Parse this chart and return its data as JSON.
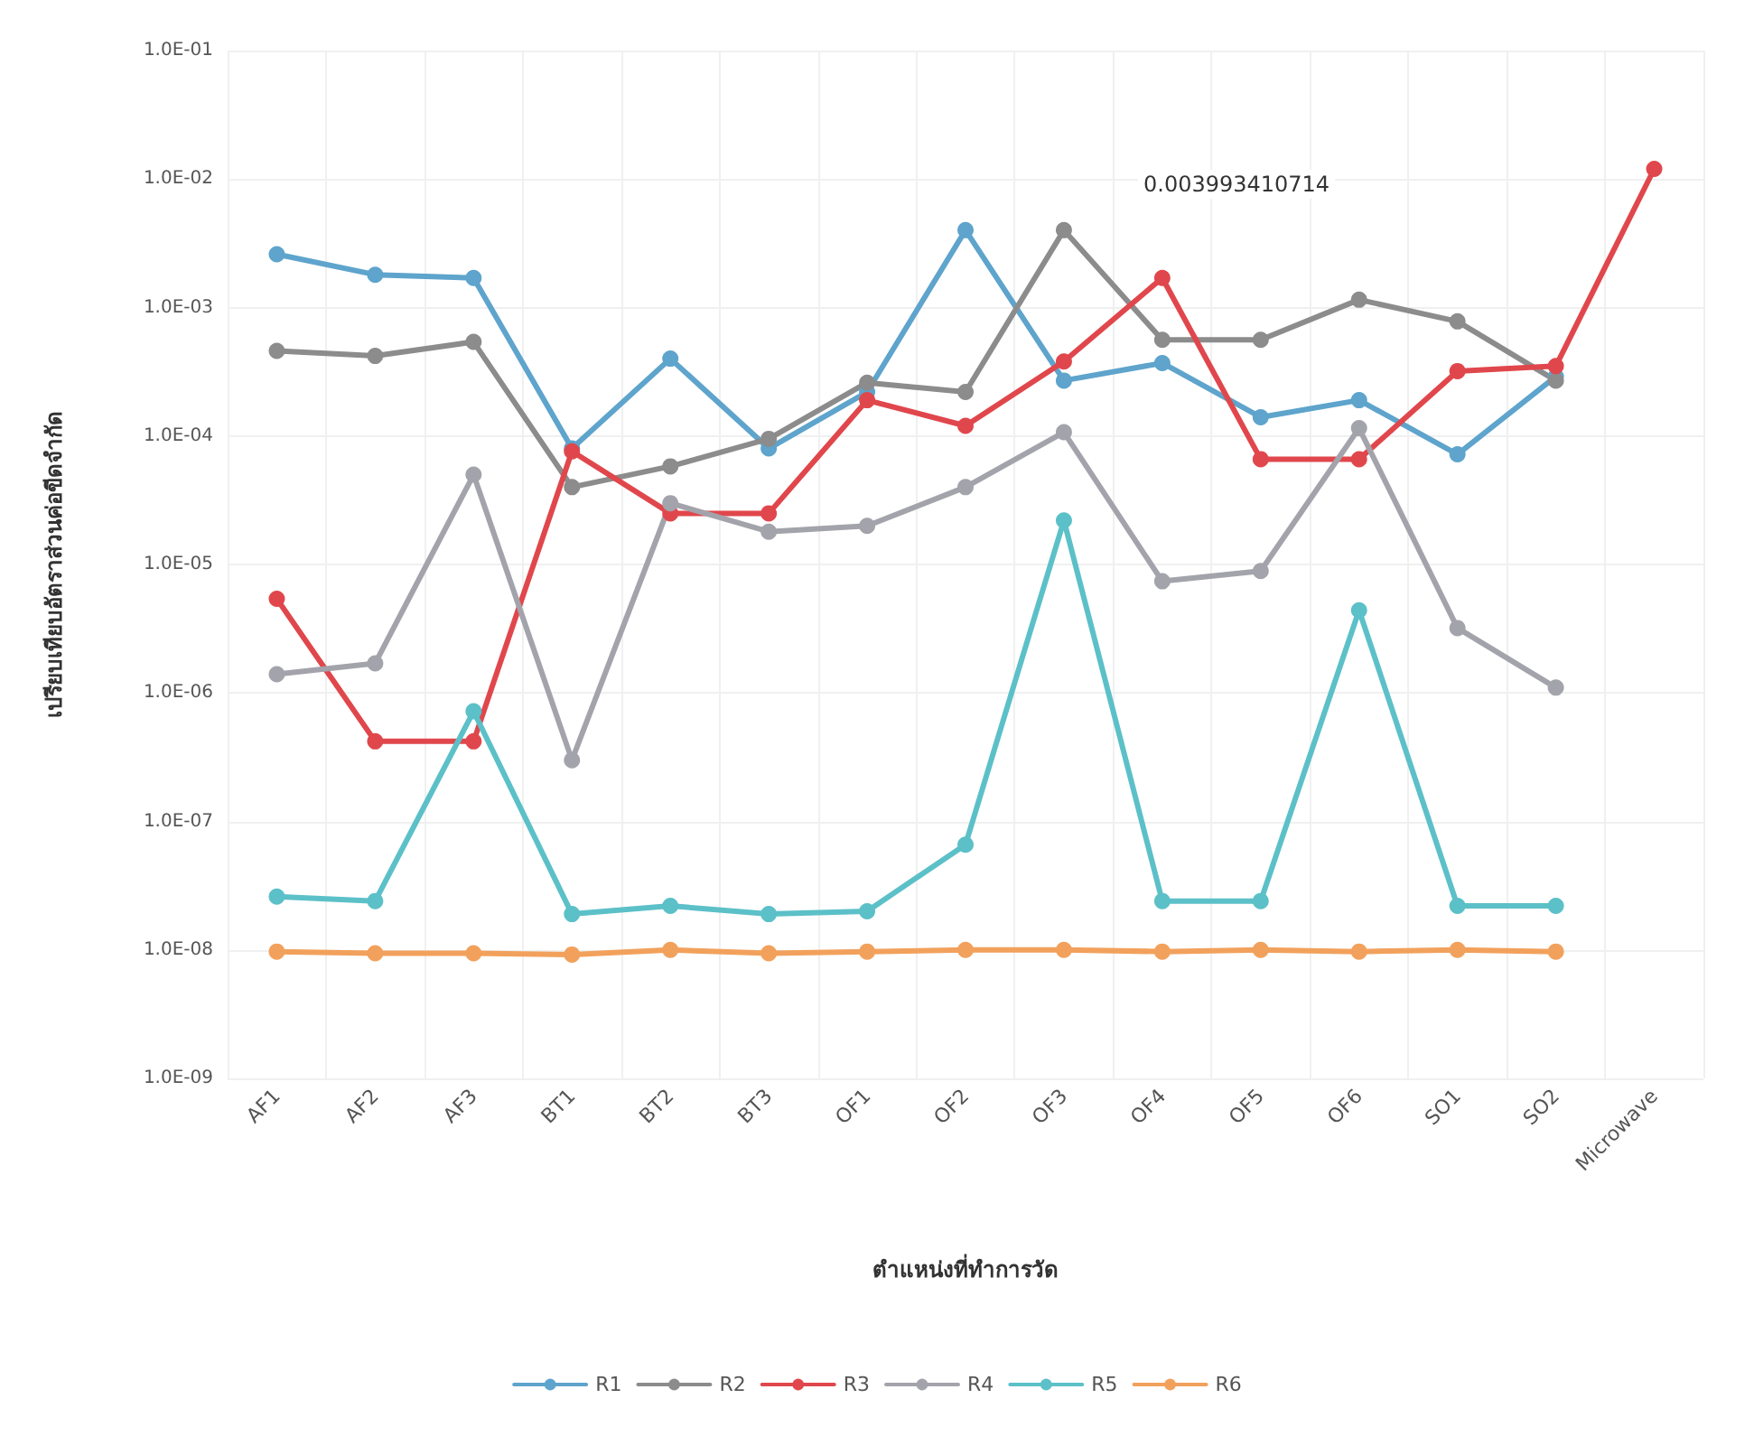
{
  "chart_data": {
    "type": "line",
    "xlabel": "ตำแหน่งที่ทำการวัด",
    "ylabel": "เปรียบเทียบอัตราส่วนค่อขีดจำกัด",
    "categories": [
      "AF1",
      "AF2",
      "AF3",
      "BT1",
      "BT2",
      "BT3",
      "OF1",
      "OF2",
      "OF3",
      "OF4",
      "OF5",
      "OF6",
      "SO1",
      "SO2",
      "Microwave"
    ],
    "series": [
      {
        "name": "R1",
        "color": "#5ea4cc",
        "values": [
          0.0026,
          0.0018,
          0.0017,
          8e-05,
          0.0004,
          8e-05,
          0.00022,
          0.004,
          0.00027,
          0.00037,
          0.00014,
          0.00019,
          7.2e-05,
          0.00029,
          null
        ]
      },
      {
        "name": "R2",
        "color": "#8c8c8c",
        "values": [
          0.00046,
          0.00042,
          0.00054,
          4e-05,
          5.8e-05,
          9.5e-05,
          0.00026,
          0.00022,
          0.004,
          0.00056,
          0.00056,
          0.00115,
          0.00078,
          0.00027,
          null
        ]
      },
      {
        "name": "R3",
        "color": "#e0474c",
        "values": [
          5.4e-06,
          4.2e-07,
          4.2e-07,
          7.6e-05,
          2.5e-05,
          2.5e-05,
          0.00019,
          0.00012,
          0.00038,
          0.0017,
          6.6e-05,
          6.6e-05,
          0.00032,
          0.00035,
          0.012
        ]
      },
      {
        "name": "R4",
        "color": "#a3a3ab",
        "values": [
          1.4e-06,
          1.7e-06,
          5e-05,
          3e-07,
          3e-05,
          1.8e-05,
          2e-05,
          4e-05,
          0.000107,
          7.4e-06,
          8.9e-06,
          0.000115,
          3.2e-06,
          1.1e-06,
          null
        ]
      },
      {
        "name": "R5",
        "color": "#5cc0c8",
        "values": [
          2.6e-08,
          2.4e-08,
          7.2e-07,
          1.9e-08,
          2.2e-08,
          1.9e-08,
          2e-08,
          6.6e-08,
          2.2e-05,
          2.4e-08,
          2.4e-08,
          4.4e-06,
          2.2e-08,
          2.2e-08,
          null
        ]
      },
      {
        "name": "R6",
        "color": "#f2a15c",
        "values": [
          9.7e-09,
          9.4e-09,
          9.4e-09,
          9.2e-09,
          1e-08,
          9.4e-09,
          9.7e-09,
          1e-08,
          1e-08,
          9.7e-09,
          1e-08,
          9.7e-09,
          1e-08,
          9.7e-09,
          null
        ]
      }
    ],
    "log": true,
    "ylim": [
      1e-09,
      0.1
    ],
    "yticks": [
      {
        "value": 1e-09,
        "label": "1.0E-09"
      },
      {
        "value": 1e-08,
        "label": "1.0E-08"
      },
      {
        "value": 1e-07,
        "label": "1.0E-07"
      },
      {
        "value": 1e-06,
        "label": "1.0E-06"
      },
      {
        "value": 1e-05,
        "label": "1.0E-05"
      },
      {
        "value": 0.0001,
        "label": "1.0E-04"
      },
      {
        "value": 0.001,
        "label": "1.0E-03"
      },
      {
        "value": 0.01,
        "label": "1.0E-02"
      },
      {
        "value": 0.1,
        "label": "1.0E-01"
      }
    ],
    "annotations": [
      "0.003993410714"
    ],
    "grid": true,
    "legend": "bottom",
    "marker": "circle",
    "line_style": "solid"
  }
}
